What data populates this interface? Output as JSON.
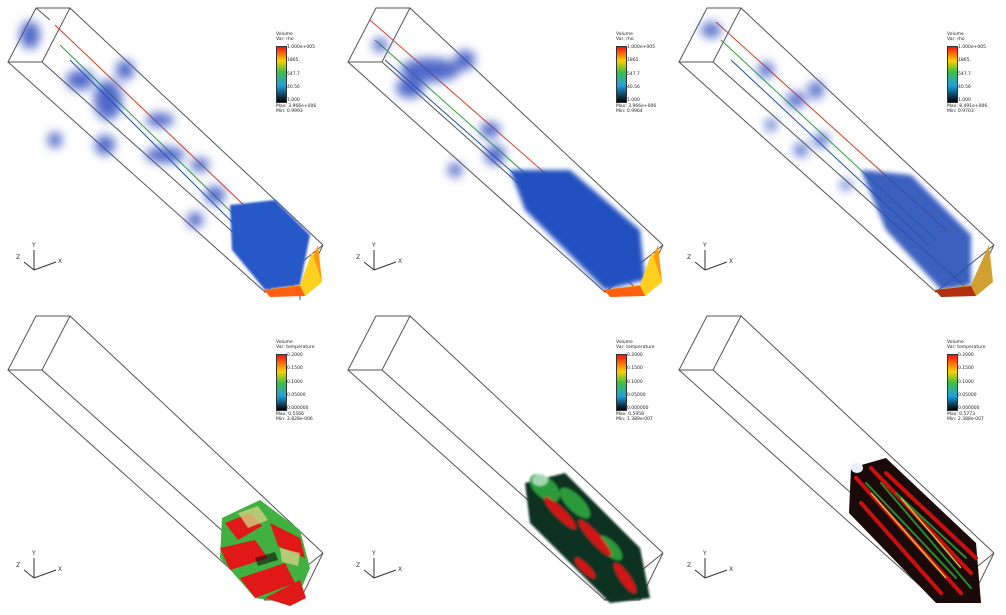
{
  "panels": [
    {
      "legend": {
        "title": "Volume",
        "var": "Var: rho",
        "max_tick": "1.000e+005",
        "t1": "1865.",
        "t2": "547.7",
        "t3": "40.56",
        "min_tick": "1.000",
        "max_label": "Max: 3.966e+006",
        "min_label": "Min: 0.9993"
      },
      "axes": {
        "x": "X",
        "y": "Y",
        "z": "Z"
      }
    },
    {
      "legend": {
        "title": "Volume",
        "var": "Var: rho",
        "max_tick": "1.000e+005",
        "t1": "1865.",
        "t2": "547.7",
        "t3": "40.56",
        "min_tick": "1.000",
        "max_label": "Max: 3.966e+006",
        "min_label": "Min: 0.9964"
      },
      "axes": {
        "x": "X",
        "y": "Y",
        "z": "Z"
      }
    },
    {
      "legend": {
        "title": "Volume",
        "var": "Var: rho",
        "max_tick": "1.000e+005",
        "t1": "1865.",
        "t2": "547.7",
        "t3": "40.56",
        "min_tick": "1.000",
        "max_label": "Max: 8.491e+006",
        "min_label": "Min: 0.9703"
      },
      "axes": {
        "x": "X",
        "y": "Y",
        "z": "Z"
      }
    },
    {
      "legend": {
        "title": "Volume",
        "var": "Var: temperature",
        "max_tick": "0.2000",
        "t1": "0.1500",
        "t2": "0.1000",
        "t3": "0.05000",
        "min_tick": "0.000000",
        "max_label": "Max: 0.5566",
        "min_label": "Min: 3.828e-006"
      },
      "axes": {
        "x": "X",
        "y": "Y",
        "z": "Z"
      }
    },
    {
      "legend": {
        "title": "Volume",
        "var": "Var: temperature",
        "max_tick": "0.2000",
        "t1": "0.1500",
        "t2": "0.1000",
        "t3": "0.05000",
        "min_tick": "0.000000",
        "max_label": "Max: 0.5958",
        "min_label": "Min: 1.389e-007"
      },
      "axes": {
        "x": "X",
        "y": "Y",
        "z": "Z"
      }
    },
    {
      "legend": {
        "title": "Volume",
        "var": "Var: temperature",
        "max_tick": "0.2000",
        "t1": "0.1500",
        "t2": "0.1000",
        "t3": "0.05000",
        "min_tick": "0.000000",
        "max_label": "Max: 0.5773",
        "min_label": "Min: 2.388e-007"
      },
      "axes": {
        "x": "X",
        "y": "Y",
        "z": "Z"
      }
    }
  ]
}
